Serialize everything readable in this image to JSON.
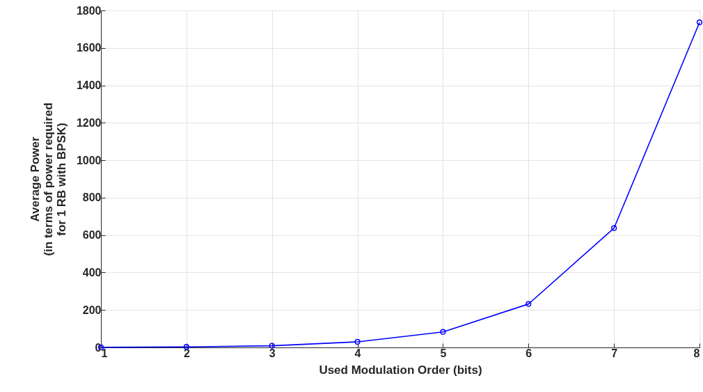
{
  "chart_data": {
    "type": "line",
    "xlabel": "Used Modulation Order (bits)",
    "ylabel": "Average Power\n(in terms of power required\nfor 1 RB with BPSK)",
    "x": [
      1,
      2,
      3,
      4,
      5,
      6,
      7,
      8
    ],
    "series": [
      {
        "color": "#0000ff",
        "values": [
          1,
          3,
          9,
          30,
          83,
          232,
          637,
          1736
        ]
      }
    ],
    "xlim": [
      1,
      8
    ],
    "xticks": [
      1,
      2,
      3,
      4,
      5,
      6,
      7,
      8
    ],
    "ylim": [
      0,
      1800
    ],
    "yticks": [
      0,
      200,
      400,
      600,
      800,
      1000,
      1200,
      1400,
      1600,
      1800
    ],
    "grid": true,
    "marker": "circle",
    "line_style": "solid"
  }
}
